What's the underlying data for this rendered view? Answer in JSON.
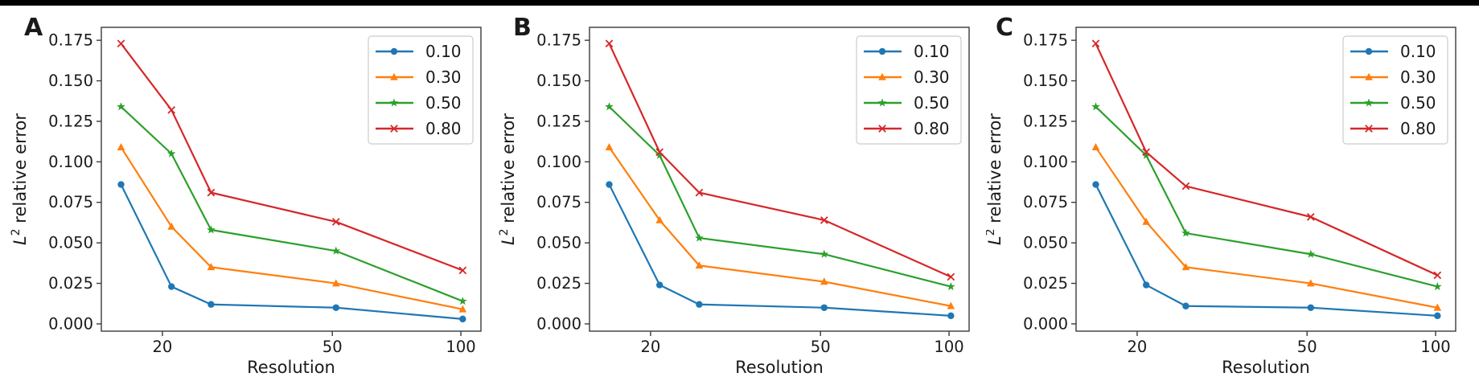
{
  "page": {
    "background_color": "#ffffff",
    "top_bar_color": "#000000"
  },
  "figure": {
    "panel_labels": [
      "A",
      "B",
      "C"
    ]
  },
  "chart_data": [
    {
      "type": "line",
      "panel_label": "A",
      "xlabel": "Resolution",
      "ylabel": {
        "base": "L",
        "sup": "2",
        "rest": " relative error"
      },
      "x_scale": "log",
      "x": [
        16,
        21,
        26,
        51,
        101
      ],
      "x_ticks": [
        "20",
        "50",
        "100"
      ],
      "y_ticks": [
        "0.000",
        "0.025",
        "0.050",
        "0.075",
        "0.100",
        "0.125",
        "0.150",
        "0.175"
      ],
      "xlim_log10": [
        1.158,
        2.047
      ],
      "ylim": [
        -0.0045,
        0.183
      ],
      "grid": false,
      "legend_position": "upper right",
      "series": [
        {
          "name": "0.10",
          "color": "#1f77b4",
          "marker": "circle",
          "values": [
            0.086,
            0.023,
            0.012,
            0.01,
            0.003
          ]
        },
        {
          "name": "0.30",
          "color": "#ff7f0e",
          "marker": "triangle",
          "values": [
            0.109,
            0.06,
            0.035,
            0.025,
            0.009
          ]
        },
        {
          "name": "0.50",
          "color": "#2ca02c",
          "marker": "star",
          "values": [
            0.134,
            0.105,
            0.058,
            0.045,
            0.014
          ]
        },
        {
          "name": "0.80",
          "color": "#d62728",
          "marker": "x",
          "values": [
            0.173,
            0.132,
            0.081,
            0.063,
            0.033
          ]
        }
      ]
    },
    {
      "type": "line",
      "panel_label": "B",
      "xlabel": "Resolution",
      "ylabel": {
        "base": "L",
        "sup": "2",
        "rest": " relative error"
      },
      "x_scale": "log",
      "x": [
        16,
        21,
        26,
        51,
        101
      ],
      "x_ticks": [
        "20",
        "50",
        "100"
      ],
      "y_ticks": [
        "0.000",
        "0.025",
        "0.050",
        "0.075",
        "0.100",
        "0.125",
        "0.150",
        "0.175"
      ],
      "xlim_log10": [
        1.158,
        2.047
      ],
      "ylim": [
        -0.0045,
        0.183
      ],
      "grid": false,
      "legend_position": "upper right",
      "series": [
        {
          "name": "0.10",
          "color": "#1f77b4",
          "marker": "circle",
          "values": [
            0.086,
            0.024,
            0.012,
            0.01,
            0.005
          ]
        },
        {
          "name": "0.30",
          "color": "#ff7f0e",
          "marker": "triangle",
          "values": [
            0.109,
            0.064,
            0.036,
            0.026,
            0.011
          ]
        },
        {
          "name": "0.50",
          "color": "#2ca02c",
          "marker": "star",
          "values": [
            0.134,
            0.104,
            0.053,
            0.043,
            0.023
          ]
        },
        {
          "name": "0.80",
          "color": "#d62728",
          "marker": "x",
          "values": [
            0.173,
            0.106,
            0.081,
            0.064,
            0.029
          ]
        }
      ]
    },
    {
      "type": "line",
      "panel_label": "C",
      "xlabel": "Resolution",
      "ylabel": {
        "base": "L",
        "sup": "2",
        "rest": " relative error"
      },
      "x_scale": "log",
      "x": [
        16,
        21,
        26,
        51,
        101
      ],
      "x_ticks": [
        "20",
        "50",
        "100"
      ],
      "y_ticks": [
        "0.000",
        "0.025",
        "0.050",
        "0.075",
        "0.100",
        "0.125",
        "0.150",
        "0.175"
      ],
      "xlim_log10": [
        1.158,
        2.047
      ],
      "ylim": [
        -0.0045,
        0.183
      ],
      "grid": false,
      "legend_position": "upper right",
      "series": [
        {
          "name": "0.10",
          "color": "#1f77b4",
          "marker": "circle",
          "values": [
            0.086,
            0.024,
            0.011,
            0.01,
            0.005
          ]
        },
        {
          "name": "0.30",
          "color": "#ff7f0e",
          "marker": "triangle",
          "values": [
            0.109,
            0.063,
            0.035,
            0.025,
            0.01
          ]
        },
        {
          "name": "0.50",
          "color": "#2ca02c",
          "marker": "star",
          "values": [
            0.134,
            0.104,
            0.056,
            0.043,
            0.023
          ]
        },
        {
          "name": "0.80",
          "color": "#d62728",
          "marker": "x",
          "values": [
            0.173,
            0.106,
            0.085,
            0.066,
            0.03
          ]
        }
      ]
    }
  ]
}
